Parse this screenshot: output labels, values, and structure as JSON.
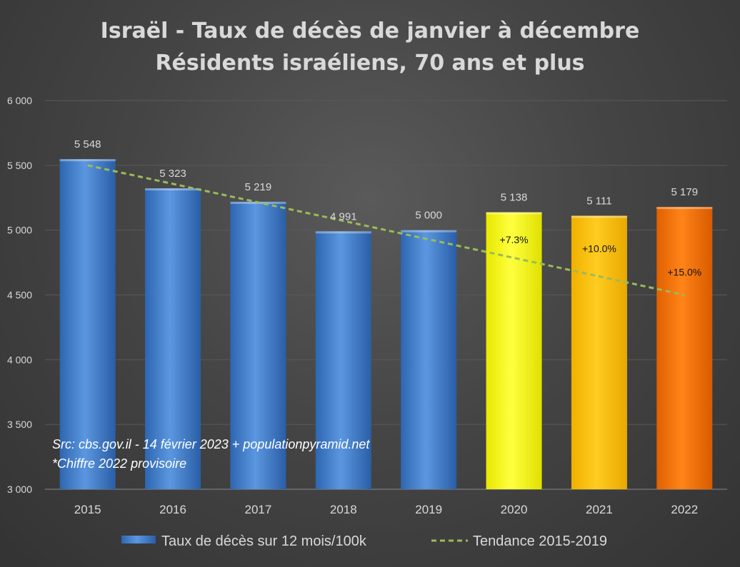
{
  "chart_data": {
    "type": "bar",
    "title_line1": "Israël - Taux de décès de janvier à décembre",
    "title_line2": "Résidents israéliens, 70 ans et plus",
    "categories": [
      "2015",
      "2016",
      "2017",
      "2018",
      "2019",
      "2020",
      "2021",
      "2022"
    ],
    "value_labels": [
      "5 548",
      "5 323",
      "5 219",
      "4 991",
      "5 000",
      "5 138",
      "5 111",
      "5 179"
    ],
    "series": [
      {
        "name": "Taux de décès sur 12 mois/100k",
        "values": [
          5548,
          5323,
          5219,
          4991,
          5000,
          5138,
          5111,
          5179
        ],
        "colors": [
          "#3f7fd0",
          "#3f7fd0",
          "#3f7fd0",
          "#3f7fd0",
          "#3f7fd0",
          "#ffff00",
          "#ffc000",
          "#f07000"
        ]
      },
      {
        "name": "Tendance 2015-2019",
        "type": "line",
        "style": "dashed",
        "color": "#9bbb59",
        "x_start": "2015",
        "y_start": 5500,
        "x_end": "2022",
        "y_end": 4500
      }
    ],
    "annotations": [
      {
        "category": "2020",
        "text": "+7.3%",
        "y": 4900
      },
      {
        "category": "2021",
        "text": "+10.0%",
        "y": 4830
      },
      {
        "category": "2022",
        "text": "+15.0%",
        "y": 4650
      }
    ],
    "ylim": [
      3000,
      6000
    ],
    "yticks": [
      3000,
      3500,
      4000,
      4500,
      5000,
      5500,
      6000
    ],
    "ytick_labels": [
      "3 000",
      "3 500",
      "4 000",
      "4 500",
      "5 000",
      "5 500",
      "6 000"
    ],
    "grid": true,
    "xlabel": "",
    "ylabel": "",
    "legend_position": "bottom",
    "source_line1": "Src: cbs.gov.il - 14 février 2023 + populationpyramid.net",
    "source_line2": "*Chiffre 2022 provisoire"
  }
}
